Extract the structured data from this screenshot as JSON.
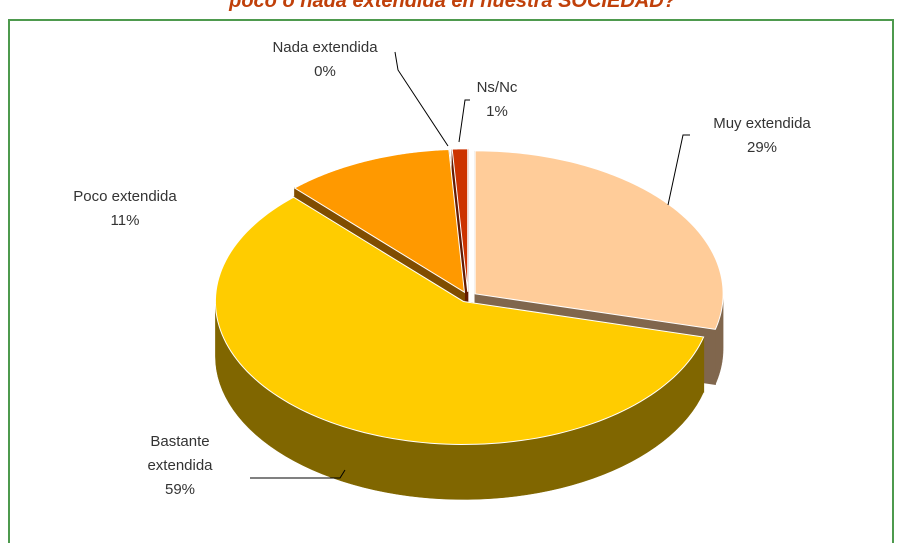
{
  "chart_data": {
    "type": "pie3d",
    "title": "poco o nada extendida en nuestra SOCIEDAD?",
    "categories": [
      "Muy extendida",
      "Bastante extendida",
      "Poco extendida",
      "Nada extendida",
      "Ns/Nc"
    ],
    "values": [
      29,
      59,
      11,
      0,
      1
    ],
    "value_labels": [
      "29%",
      "59%",
      "11%",
      "0%",
      "1%"
    ],
    "colors": [
      "#FFCC99",
      "#FFCC00",
      "#FF9900",
      "#D9D9D9",
      "#CC3300"
    ]
  }
}
